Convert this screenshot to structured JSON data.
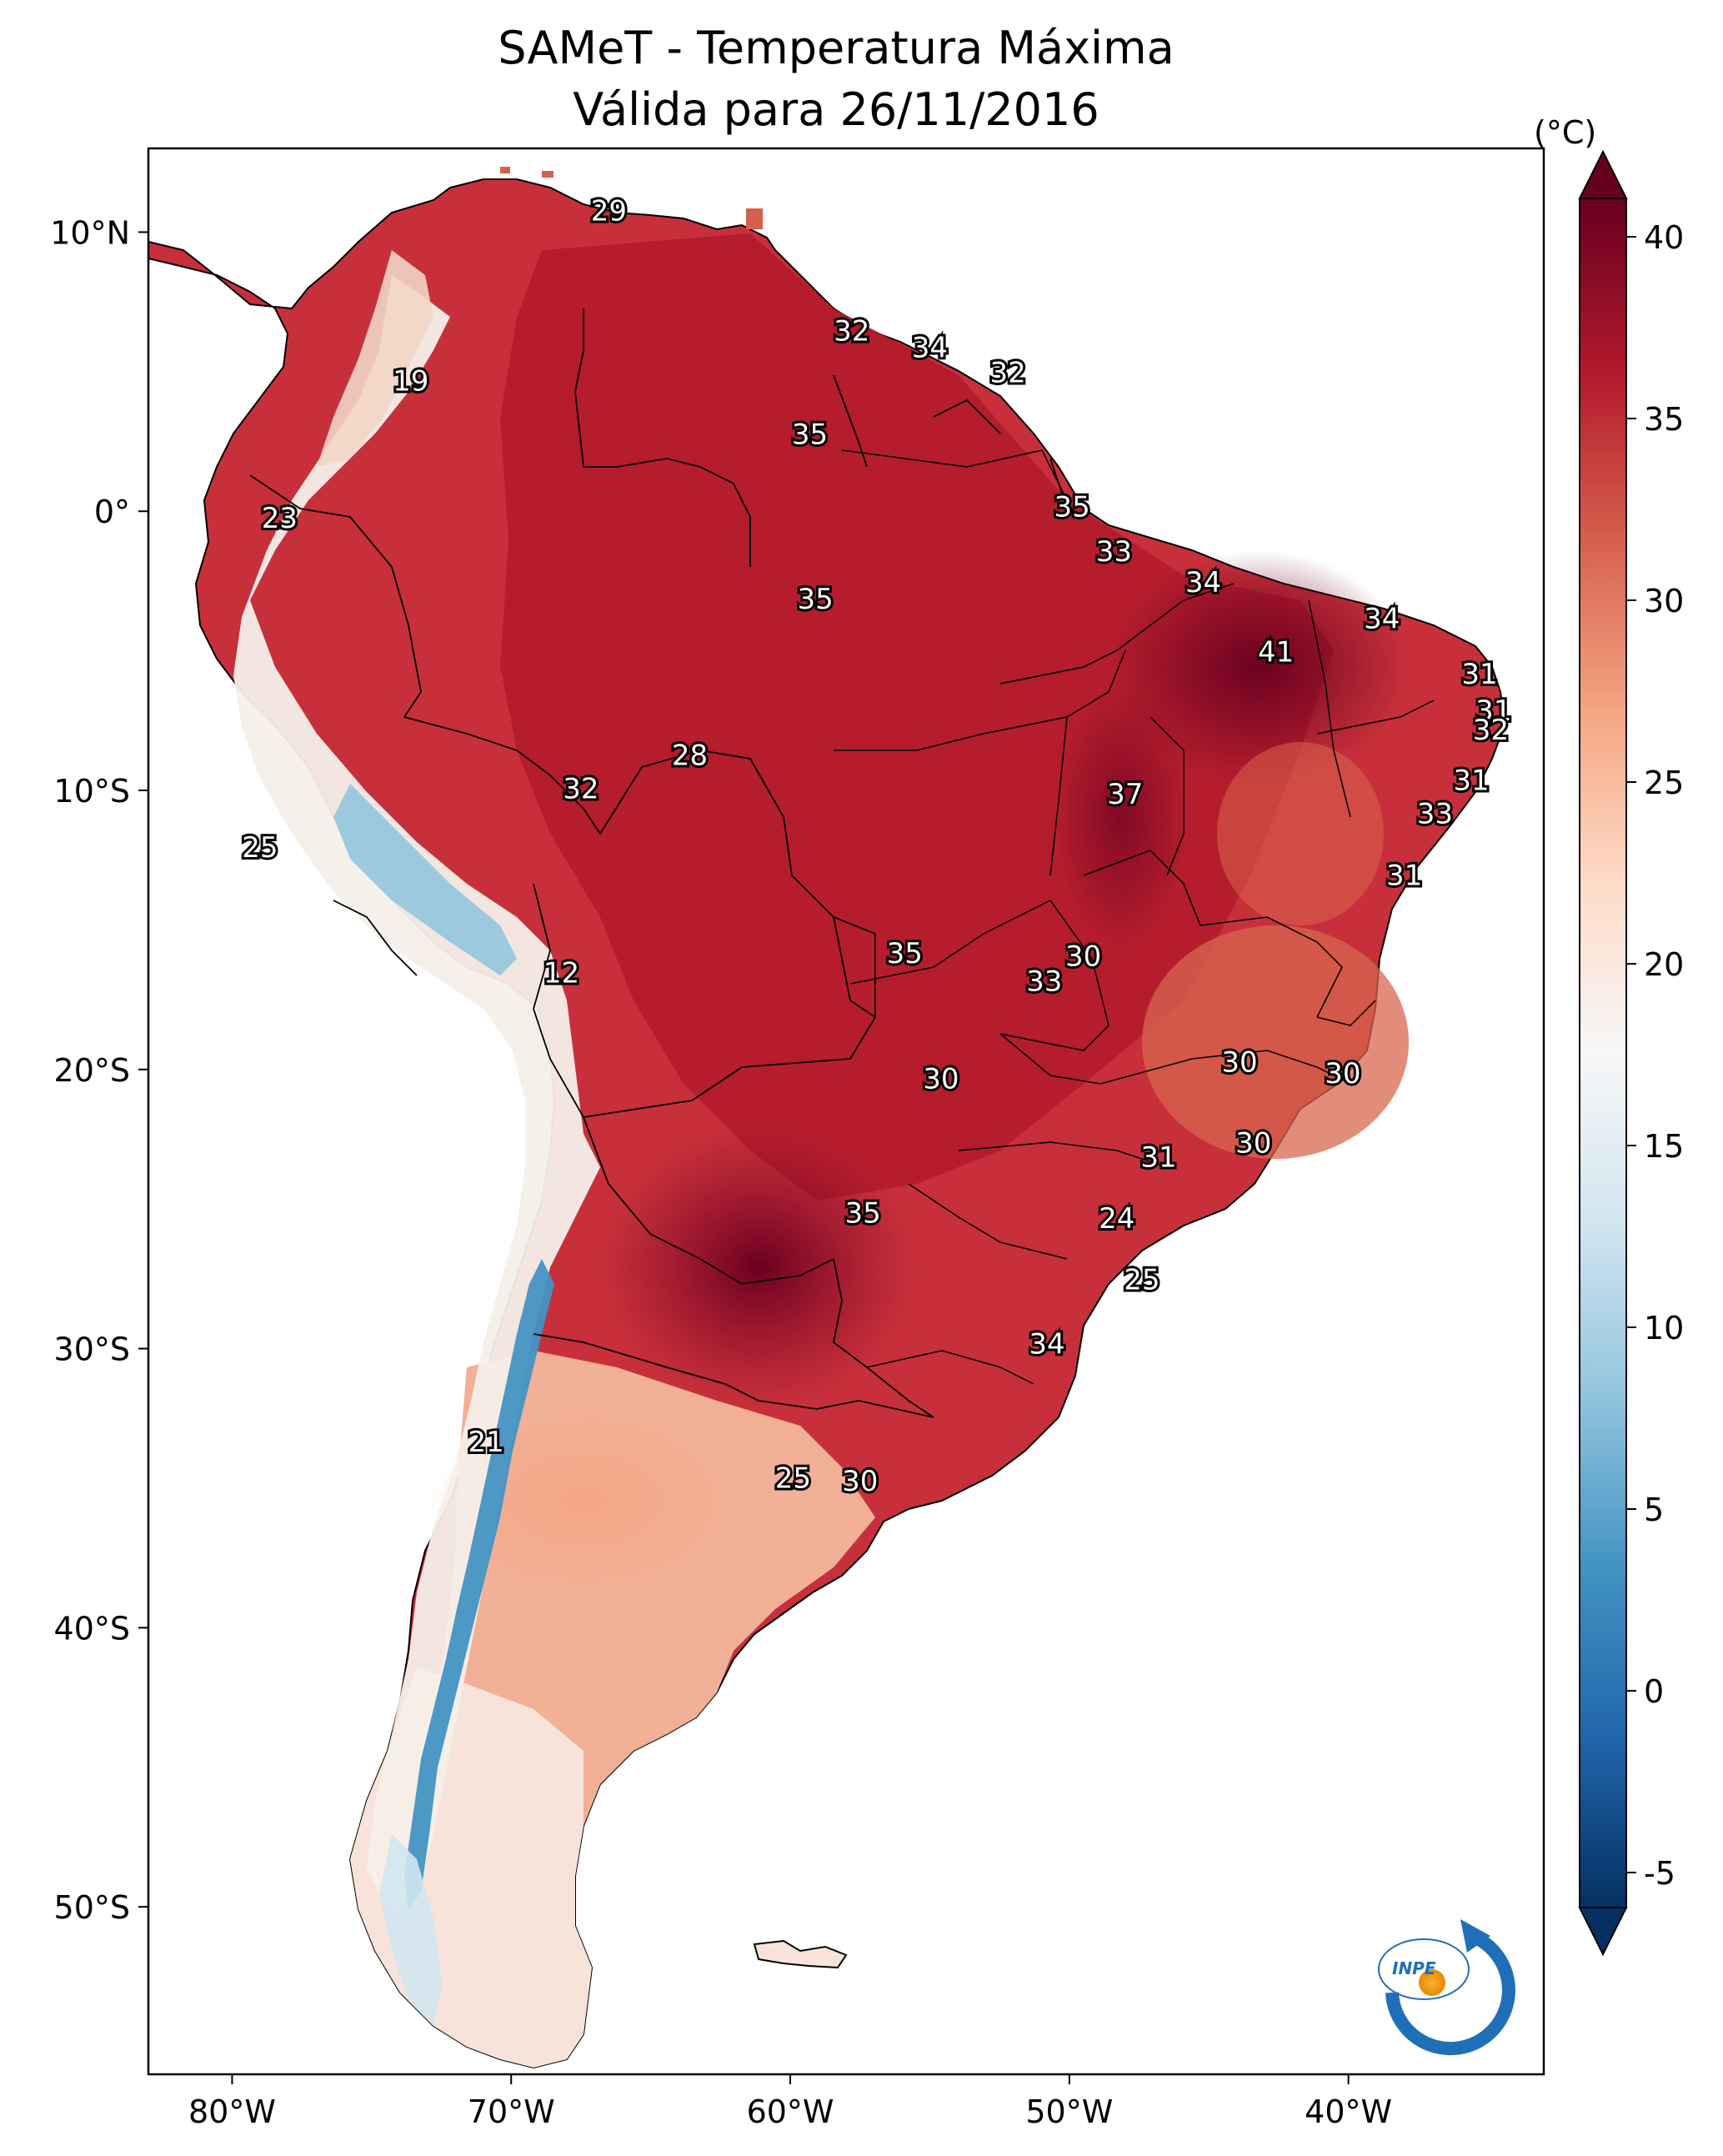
{
  "title": "SAMeT - Temperatura Máxima",
  "subtitle": "Válida para 26/11/2016",
  "colorbar": {
    "unit": "(°C)",
    "ticks": [
      "40",
      "35",
      "30",
      "25",
      "20",
      "15",
      "10",
      "5",
      "0",
      "-5"
    ],
    "range": [
      -5,
      40
    ],
    "colors": [
      "#053061",
      "#2166ac",
      "#4393c3",
      "#92c5de",
      "#d1e5f0",
      "#f7f7f7",
      "#fddbc7",
      "#f4a582",
      "#d6604d",
      "#b2182b",
      "#67001f"
    ]
  },
  "axes": {
    "lon_ticks": [
      "80°W",
      "70°W",
      "60°W",
      "50°W",
      "40°W"
    ],
    "lat_ticks": [
      "10°N",
      "0°",
      "10°S",
      "20°S",
      "30°S",
      "40°S",
      "50°S"
    ]
  },
  "chart_data": {
    "type": "heatmap",
    "variable": "Temperatura Máxima",
    "unit": "°C",
    "date": "26/11/2016",
    "x_range": [
      -83,
      -33
    ],
    "y_range": [
      -56,
      13
    ],
    "point_labels": [
      {
        "lon": -66.5,
        "lat": 10.7,
        "value": "29"
      },
      {
        "lon": -57.8,
        "lat": 6.4,
        "value": "32"
      },
      {
        "lon": -55.0,
        "lat": 5.8,
        "value": "34"
      },
      {
        "lon": -52.2,
        "lat": 4.9,
        "value": "32"
      },
      {
        "lon": -73.6,
        "lat": 4.6,
        "value": "19"
      },
      {
        "lon": -59.3,
        "lat": 2.7,
        "value": "35"
      },
      {
        "lon": -78.3,
        "lat": -0.3,
        "value": "23"
      },
      {
        "lon": -49.9,
        "lat": 0.1,
        "value": "35"
      },
      {
        "lon": -48.4,
        "lat": -1.5,
        "value": "33"
      },
      {
        "lon": -45.2,
        "lat": -2.6,
        "value": "34"
      },
      {
        "lon": -38.8,
        "lat": -3.9,
        "value": "34"
      },
      {
        "lon": -59.1,
        "lat": -3.2,
        "value": "35"
      },
      {
        "lon": -42.6,
        "lat": -5.1,
        "value": "41"
      },
      {
        "lon": -35.3,
        "lat": -5.9,
        "value": "31"
      },
      {
        "lon": -34.8,
        "lat": -7.2,
        "value": "31"
      },
      {
        "lon": -34.9,
        "lat": -7.9,
        "value": "32"
      },
      {
        "lon": -63.6,
        "lat": -8.8,
        "value": "28"
      },
      {
        "lon": -67.5,
        "lat": -10.0,
        "value": "32"
      },
      {
        "lon": -35.6,
        "lat": -9.7,
        "value": "31"
      },
      {
        "lon": -48.0,
        "lat": -10.2,
        "value": "37"
      },
      {
        "lon": -36.9,
        "lat": -10.9,
        "value": "33"
      },
      {
        "lon": -79.0,
        "lat": -12.1,
        "value": "25"
      },
      {
        "lon": -38.0,
        "lat": -13.1,
        "value": "31"
      },
      {
        "lon": -55.9,
        "lat": -15.9,
        "value": "35"
      },
      {
        "lon": -49.5,
        "lat": -16.0,
        "value": "30"
      },
      {
        "lon": -50.9,
        "lat": -16.9,
        "value": "33"
      },
      {
        "lon": -68.2,
        "lat": -16.6,
        "value": "12"
      },
      {
        "lon": -43.9,
        "lat": -19.8,
        "value": "30"
      },
      {
        "lon": -40.2,
        "lat": -20.2,
        "value": "30"
      },
      {
        "lon": -54.6,
        "lat": -20.4,
        "value": "30"
      },
      {
        "lon": -43.4,
        "lat": -22.7,
        "value": "30"
      },
      {
        "lon": -46.8,
        "lat": -23.2,
        "value": "31"
      },
      {
        "lon": -57.4,
        "lat": -25.2,
        "value": "35"
      },
      {
        "lon": -48.3,
        "lat": -25.4,
        "value": "24"
      },
      {
        "lon": -47.4,
        "lat": -27.6,
        "value": "25"
      },
      {
        "lon": -50.8,
        "lat": -29.9,
        "value": "34"
      },
      {
        "lon": -70.9,
        "lat": -33.4,
        "value": "21"
      },
      {
        "lon": -59.9,
        "lat": -34.7,
        "value": "25"
      },
      {
        "lon": -57.5,
        "lat": -34.8,
        "value": "30"
      }
    ]
  }
}
